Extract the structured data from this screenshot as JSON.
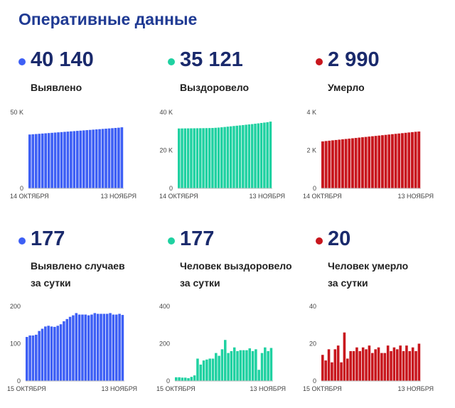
{
  "header": {
    "title": "Оперативные данные"
  },
  "colors": {
    "blue": "#3d5ff5",
    "green": "#1fd1a1",
    "red": "#c8161d"
  },
  "stats": [
    {
      "value": "40 140",
      "label": [
        "Выявлено"
      ],
      "color": "blue"
    },
    {
      "value": "35 121",
      "label": [
        "Выздоровело"
      ],
      "color": "green"
    },
    {
      "value": "2 990",
      "label": [
        "Умерло"
      ],
      "color": "red"
    },
    {
      "value": "177",
      "label": [
        "Выявлено случаев",
        "за сутки"
      ],
      "color": "blue"
    },
    {
      "value": "177",
      "label": [
        "Человек выздоровело",
        "за сутки"
      ],
      "color": "green"
    },
    {
      "value": "20",
      "label": [
        "Человек умерло",
        "за сутки"
      ],
      "color": "red"
    }
  ],
  "chart_data": [
    {
      "type": "bar",
      "series_color": "blue",
      "ylim": [
        0,
        50000
      ],
      "ytick_labels": [
        "0",
        "50 K"
      ],
      "ytick_values": [
        0,
        50000
      ],
      "x_start_label": "14 ОКТЯБРЯ",
      "x_end_label": "13 НОЯБРЯ",
      "values": [
        35400,
        35560,
        35720,
        35880,
        36040,
        36200,
        36360,
        36520,
        36680,
        36840,
        37000,
        37160,
        37320,
        37480,
        37640,
        37800,
        37960,
        38120,
        38280,
        38440,
        38600,
        38760,
        38920,
        39080,
        39240,
        39400,
        39560,
        39720,
        39880,
        40140
      ]
    },
    {
      "type": "bar",
      "series_color": "green",
      "ylim": [
        0,
        40000
      ],
      "ytick_labels": [
        "0",
        "20 K",
        "40 K"
      ],
      "ytick_values": [
        0,
        20000,
        40000
      ],
      "x_start_label": "14 ОКТЯБРЯ",
      "x_end_label": "13 НОЯБРЯ",
      "values": [
        31500,
        31520,
        31540,
        31560,
        31580,
        31600,
        31620,
        31640,
        31660,
        31690,
        31720,
        31760,
        31860,
        31970,
        32120,
        32290,
        32460,
        32620,
        32800,
        32960,
        33120,
        33290,
        33470,
        33640,
        33800,
        34000,
        34180,
        34400,
        34600,
        34800,
        35121
      ]
    },
    {
      "type": "bar",
      "series_color": "red",
      "ylim": [
        0,
        4000
      ],
      "ytick_labels": [
        "0",
        "2 K",
        "4 K"
      ],
      "ytick_values": [
        0,
        2000,
        4000
      ],
      "x_start_label": "14 ОКТЯБРЯ",
      "x_end_label": "13 НОЯБРЯ",
      "values": [
        2470,
        2490,
        2508,
        2526,
        2544,
        2562,
        2580,
        2598,
        2616,
        2634,
        2652,
        2670,
        2688,
        2706,
        2724,
        2742,
        2760,
        2778,
        2796,
        2814,
        2832,
        2850,
        2868,
        2886,
        2904,
        2922,
        2940,
        2958,
        2976,
        2990
      ]
    },
    {
      "type": "bar",
      "series_color": "blue",
      "ylim": [
        0,
        200
      ],
      "ytick_labels": [
        "0",
        "100",
        "200"
      ],
      "ytick_values": [
        0,
        100,
        200
      ],
      "x_start_label": "15 ОКТЯБРЯ",
      "x_end_label": "13 НОЯБРЯ",
      "values": [
        118,
        122,
        122,
        124,
        134,
        140,
        146,
        148,
        146,
        145,
        148,
        152,
        160,
        166,
        172,
        176,
        182,
        178,
        178,
        178,
        176,
        178,
        182,
        180,
        180,
        180,
        180,
        182,
        178,
        178,
        180,
        177
      ]
    },
    {
      "type": "bar",
      "series_color": "green",
      "ylim": [
        0,
        400
      ],
      "ytick_labels": [
        "0",
        "200",
        "400"
      ],
      "ytick_values": [
        0,
        200,
        400
      ],
      "x_start_label": "15 ОКТЯБРЯ",
      "x_end_label": "13 НОЯБРЯ",
      "values": [
        20,
        20,
        18,
        18,
        15,
        22,
        30,
        120,
        88,
        110,
        115,
        120,
        120,
        150,
        135,
        170,
        220,
        150,
        160,
        180,
        160,
        165,
        165,
        165,
        175,
        160,
        170,
        60,
        150,
        180,
        160,
        177
      ]
    },
    {
      "type": "bar",
      "series_color": "red",
      "ylim": [
        0,
        40
      ],
      "ytick_labels": [
        "0",
        "20",
        "40"
      ],
      "ytick_values": [
        0,
        20,
        40
      ],
      "x_start_label": "15 ОКТЯБРЯ",
      "x_end_label": "13 НОЯБРЯ",
      "values": [
        14,
        11,
        17,
        10,
        17,
        19,
        10,
        26,
        12,
        16,
        16,
        18,
        16,
        18,
        17,
        19,
        15,
        17,
        18,
        15,
        15,
        19,
        16,
        18,
        17,
        19,
        16,
        19,
        16,
        18,
        16,
        20
      ]
    }
  ]
}
